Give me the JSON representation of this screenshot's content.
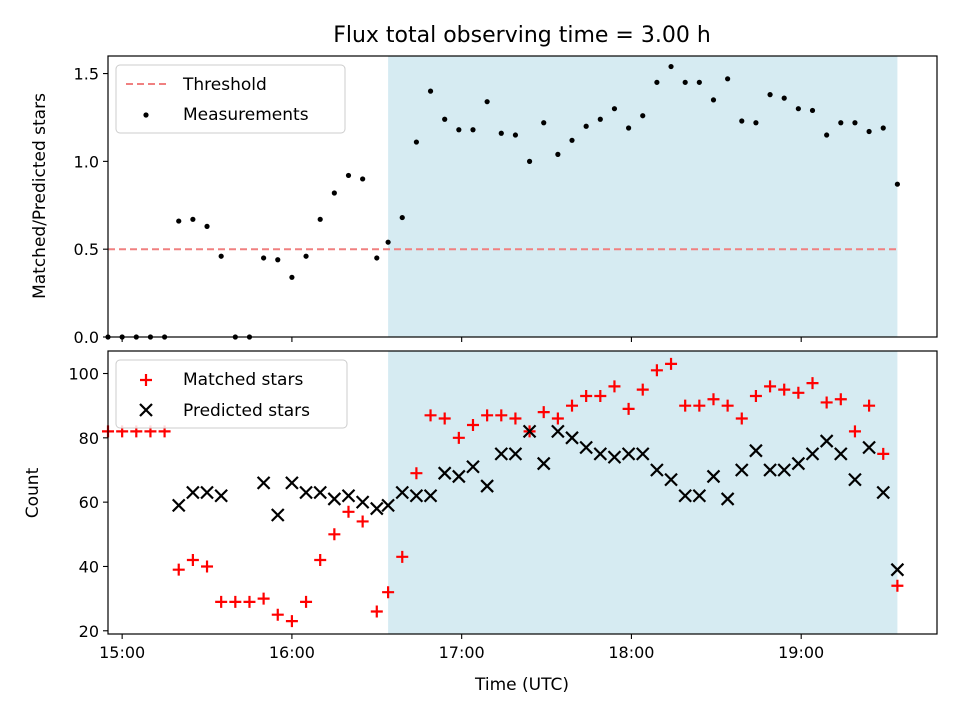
{
  "chart_data": [
    {
      "type": "scatter",
      "title": "Flux total observing time = 3.00 h",
      "ylabel": "Matched/Predicted stars",
      "xlabel": "",
      "xlim": [
        "14:55",
        "19:48"
      ],
      "ylim": [
        0,
        1.6
      ],
      "xticks": [
        "15:00",
        "16:00",
        "17:00",
        "18:00",
        "19:00"
      ],
      "yticks": [
        0.0,
        0.5,
        1.0,
        1.5
      ],
      "ytick_labels": [
        "0.0",
        "0.5",
        "1.0",
        "1.5"
      ],
      "shaded_region": {
        "x0": "16:34",
        "x1": "19:34",
        "color": "#add8e6"
      },
      "threshold": {
        "name": "Threshold",
        "y": 0.5,
        "x0": "14:55",
        "x1": "19:34",
        "color": "#f08080"
      },
      "legend": {
        "position": "upper-left",
        "entries": [
          "Threshold",
          "Measurements"
        ]
      },
      "series": [
        {
          "name": "Measurements",
          "marker": "dot",
          "color": "#000000",
          "x": [
            "14:55",
            "15:00",
            "15:05",
            "15:10",
            "15:15",
            "15:20",
            "15:25",
            "15:30",
            "15:35",
            "15:40",
            "15:45",
            "15:50",
            "15:55",
            "16:00",
            "16:05",
            "16:10",
            "16:15",
            "16:20",
            "16:25",
            "16:30",
            "16:34",
            "16:39",
            "16:44",
            "16:49",
            "16:54",
            "16:59",
            "17:04",
            "17:09",
            "17:14",
            "17:19",
            "17:24",
            "17:29",
            "17:34",
            "17:39",
            "17:44",
            "17:49",
            "17:54",
            "17:59",
            "18:04",
            "18:09",
            "18:14",
            "18:19",
            "18:24",
            "18:29",
            "18:34",
            "18:39",
            "18:44",
            "18:49",
            "18:54",
            "18:59",
            "19:04",
            "19:09",
            "19:14",
            "19:19",
            "19:24",
            "19:29",
            "19:34"
          ],
          "y": [
            0.0,
            0.0,
            0.0,
            0.0,
            0.0,
            0.66,
            0.67,
            0.63,
            0.46,
            0.0,
            0.0,
            0.45,
            0.44,
            0.34,
            0.46,
            0.67,
            0.82,
            0.92,
            0.9,
            0.45,
            0.54,
            0.68,
            1.11,
            1.4,
            1.24,
            1.18,
            1.18,
            1.34,
            1.16,
            1.15,
            1.0,
            1.22,
            1.04,
            1.12,
            1.2,
            1.24,
            1.3,
            1.19,
            1.26,
            1.45,
            1.54,
            1.45,
            1.45,
            1.35,
            1.47,
            1.23,
            1.22,
            1.38,
            1.36,
            1.3,
            1.29,
            1.15,
            1.22,
            1.22,
            1.17,
            1.19,
            0.87
          ]
        }
      ]
    },
    {
      "type": "scatter",
      "title": "",
      "ylabel": "Count",
      "xlabel": "Time (UTC)",
      "xlim": [
        "14:55",
        "19:48"
      ],
      "ylim": [
        19,
        107
      ],
      "xticks": [
        "15:00",
        "16:00",
        "17:00",
        "18:00",
        "19:00"
      ],
      "yticks": [
        20,
        40,
        60,
        80,
        100
      ],
      "ytick_labels": [
        "20",
        "40",
        "60",
        "80",
        "100"
      ],
      "shaded_region": {
        "x0": "16:34",
        "x1": "19:34",
        "color": "#add8e6"
      },
      "legend": {
        "position": "upper-left",
        "entries": [
          "Matched stars",
          "Predicted stars"
        ]
      },
      "series": [
        {
          "name": "Matched stars",
          "marker": "plus",
          "color": "#ff0000",
          "x": [
            "14:55",
            "15:00",
            "15:05",
            "15:10",
            "15:15",
            "15:20",
            "15:25",
            "15:30",
            "15:35",
            "15:40",
            "15:45",
            "15:50",
            "15:55",
            "16:00",
            "16:05",
            "16:10",
            "16:15",
            "16:20",
            "16:25",
            "16:30",
            "16:34",
            "16:39",
            "16:44",
            "16:49",
            "16:54",
            "16:59",
            "17:04",
            "17:09",
            "17:14",
            "17:19",
            "17:24",
            "17:29",
            "17:34",
            "17:39",
            "17:44",
            "17:49",
            "17:54",
            "17:59",
            "18:04",
            "18:09",
            "18:14",
            "18:19",
            "18:24",
            "18:29",
            "18:34",
            "18:39",
            "18:44",
            "18:49",
            "18:54",
            "18:59",
            "19:04",
            "19:09",
            "19:14",
            "19:19",
            "19:24",
            "19:29",
            "19:34"
          ],
          "y": [
            82,
            82,
            82,
            82,
            82,
            39,
            42,
            40,
            29,
            29,
            29,
            30,
            25,
            23,
            29,
            42,
            50,
            57,
            54,
            26,
            32,
            43,
            69,
            87,
            86,
            80,
            84,
            87,
            87,
            86,
            82,
            88,
            86,
            90,
            93,
            93,
            96,
            89,
            95,
            101,
            103,
            90,
            90,
            92,
            90,
            86,
            93,
            96,
            95,
            94,
            97,
            91,
            92,
            82,
            90,
            75,
            34
          ]
        },
        {
          "name": "Predicted stars",
          "marker": "x",
          "color": "#000000",
          "x": [
            "15:20",
            "15:25",
            "15:30",
            "15:35",
            "15:50",
            "15:55",
            "16:00",
            "16:05",
            "16:10",
            "16:15",
            "16:20",
            "16:25",
            "16:30",
            "16:34",
            "16:39",
            "16:44",
            "16:49",
            "16:54",
            "16:59",
            "17:04",
            "17:09",
            "17:14",
            "17:19",
            "17:24",
            "17:29",
            "17:34",
            "17:39",
            "17:44",
            "17:49",
            "17:54",
            "17:59",
            "18:04",
            "18:09",
            "18:14",
            "18:19",
            "18:24",
            "18:29",
            "18:34",
            "18:39",
            "18:44",
            "18:49",
            "18:54",
            "18:59",
            "19:04",
            "19:09",
            "19:14",
            "19:19",
            "19:24",
            "19:29",
            "19:34"
          ],
          "y": [
            59,
            63,
            63,
            62,
            66,
            56,
            66,
            63,
            63,
            61,
            62,
            60,
            58,
            59,
            63,
            62,
            62,
            69,
            68,
            71,
            65,
            75,
            75,
            82,
            72,
            82,
            80,
            77,
            75,
            74,
            75,
            75,
            70,
            67,
            62,
            62,
            68,
            61,
            70,
            76,
            70,
            70,
            72,
            75,
            79,
            75,
            67,
            77,
            63,
            39
          ]
        }
      ]
    }
  ]
}
